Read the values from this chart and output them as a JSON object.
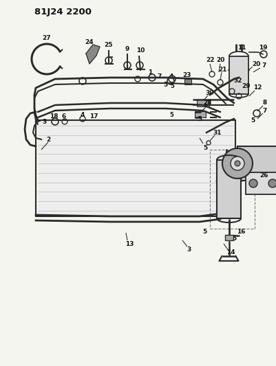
{
  "title": "81J24 2200",
  "bg_color": "#f5f5f0",
  "line_color": "#2a2a2a",
  "text_color": "#111111",
  "figsize": [
    4.01,
    5.33
  ],
  "dpi": 100
}
